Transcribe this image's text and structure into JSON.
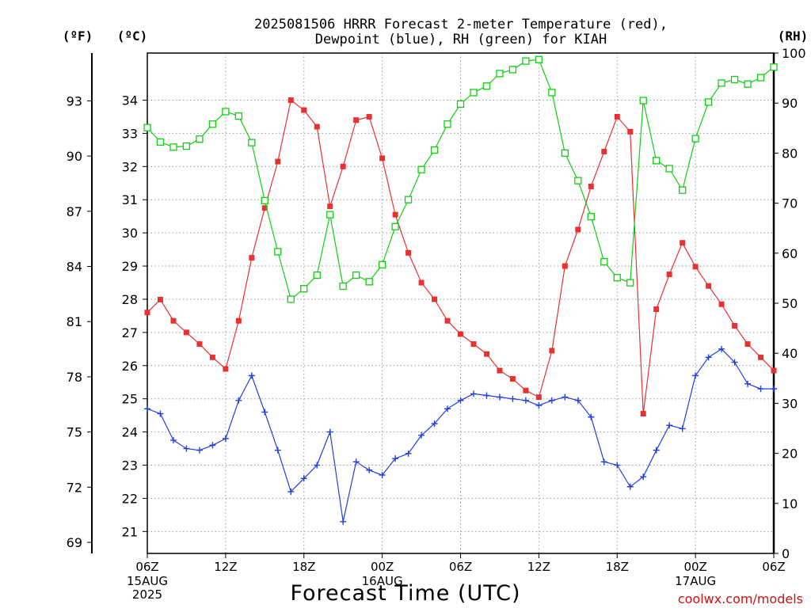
{
  "chart_data": {
    "type": "line",
    "title_line1": "2025081506 HRRR Forecast 2-meter Temperature (red),",
    "title_line2": "Dewpoint (blue), RH (green) for KIAH",
    "xlabel": "Forecast Time (UTC)",
    "watermark": "coolwx.com/models",
    "axes": {
      "fahrenheit": {
        "label": "(ºF)",
        "range": [
          68.4,
          95.6
        ],
        "ticks": [
          "69",
          "72",
          "75",
          "78",
          "81",
          "84",
          "87",
          "90",
          "93"
        ]
      },
      "celsius": {
        "label": "(ºC)",
        "range": [
          20.34,
          35.42
        ],
        "ticks": [
          "21",
          "22",
          "23",
          "24",
          "25",
          "26",
          "27",
          "28",
          "29",
          "30",
          "31",
          "32",
          "33",
          "34"
        ]
      },
      "rh": {
        "label": "(RH)",
        "range": [
          0,
          100
        ],
        "ticks": [
          "0",
          "10",
          "20",
          "30",
          "40",
          "50",
          "60",
          "70",
          "80",
          "90",
          "100"
        ]
      }
    },
    "x": {
      "range": [
        0,
        48
      ],
      "unit": "hours since 2025-08-15 06Z",
      "ticks": [
        {
          "h": 0,
          "label": "06Z",
          "date1": "15AUG",
          "date2": "2025"
        },
        {
          "h": 6,
          "label": "12Z"
        },
        {
          "h": 12,
          "label": "18Z"
        },
        {
          "h": 18,
          "label": "00Z",
          "date1": "16AUG"
        },
        {
          "h": 24,
          "label": "06Z"
        },
        {
          "h": 30,
          "label": "12Z"
        },
        {
          "h": 36,
          "label": "18Z"
        },
        {
          "h": 42,
          "label": "00Z",
          "date1": "17AUG"
        },
        {
          "h": 48,
          "label": "06Z"
        }
      ]
    },
    "grid": true,
    "series": [
      {
        "key": "temperature",
        "axis": "celsius",
        "color": "#e83232",
        "marker": "filled-square",
        "values": [
          27.6,
          27.99,
          27.35,
          27.0,
          26.65,
          26.25,
          25.9,
          27.35,
          29.25,
          30.75,
          32.15,
          34.0,
          33.7,
          33.2,
          30.8,
          32.0,
          33.4,
          33.5,
          32.25,
          30.55,
          29.4,
          28.5,
          28.0,
          27.35,
          26.95,
          26.65,
          26.35,
          25.85,
          25.6,
          25.25,
          25.05,
          26.45,
          29.0,
          30.1,
          31.4,
          32.45,
          33.5,
          33.05,
          24.55,
          27.7,
          28.75,
          29.7,
          28.98,
          28.4,
          27.85,
          27.2,
          26.65,
          26.25,
          25.85
        ]
      },
      {
        "key": "dewpoint",
        "axis": "celsius",
        "color": "#2040e0",
        "marker": "plus",
        "values": [
          24.7,
          24.55,
          23.75,
          23.5,
          23.45,
          23.6,
          23.8,
          24.95,
          25.7,
          24.6,
          23.45,
          22.2,
          22.6,
          23.0,
          24.0,
          21.3,
          23.1,
          22.85,
          22.7,
          23.2,
          23.35,
          23.9,
          24.25,
          24.7,
          24.95,
          25.15,
          25.1,
          25.05,
          25.0,
          24.95,
          24.8,
          24.95,
          25.05,
          24.95,
          24.45,
          23.1,
          23.0,
          22.35,
          22.65,
          23.45,
          24.2,
          24.1,
          25.7,
          26.25,
          26.5,
          26.1,
          25.45,
          25.3,
          25.3
        ]
      },
      {
        "key": "rh",
        "axis": "rh",
        "color": "#10d010",
        "marker": "open-square",
        "values": [
          85.1,
          82.2,
          81.2,
          81.4,
          82.8,
          85.8,
          88.3,
          87.4,
          82.1,
          70.5,
          60.3,
          50.8,
          52.9,
          55.6,
          67.7,
          53.4,
          55.6,
          54.3,
          57.7,
          65.3,
          70.7,
          76.7,
          80.6,
          85.8,
          89.8,
          92.1,
          93.4,
          95.9,
          96.7,
          98.4,
          98.7,
          92.1,
          80.0,
          74.5,
          67.3,
          58.3,
          55.1,
          54.1,
          90.5,
          78.5,
          76.9,
          72.6,
          82.9,
          90.2,
          94.0,
          94.7,
          93.8,
          95.1,
          97.2
        ]
      }
    ]
  }
}
